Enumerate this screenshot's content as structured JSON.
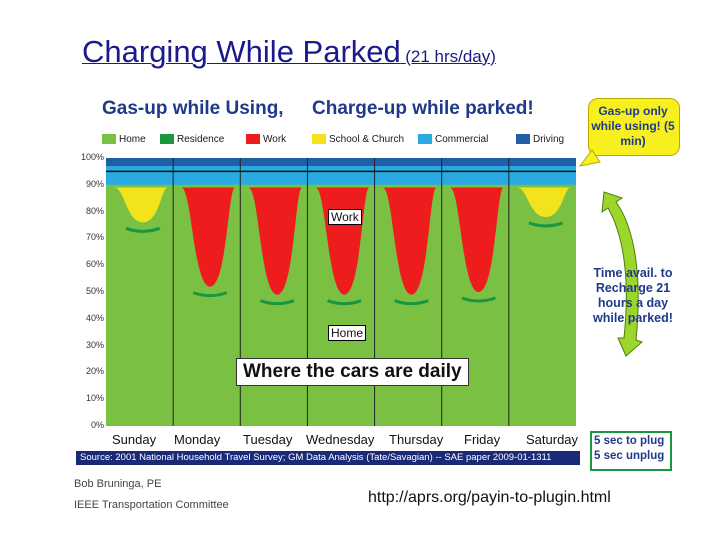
{
  "title": {
    "main": "Charging While Parked",
    "sub": "(21 hrs/day)"
  },
  "legend_header": {
    "left": "Gas-up while Using,",
    "right": "Charge-up while parked!"
  },
  "callouts": {
    "gas_up": "Gas-up only while using! (5 min)",
    "time_avail": "Time avail. to Recharge 21 hours a day while parked!",
    "plug": "5 sec to plug 5 sec unplug"
  },
  "chart_data": {
    "type": "area",
    "title": "Where the cars are daily",
    "xlabel": "",
    "ylabel": "",
    "ylim": [
      0,
      100
    ],
    "y_ticks": [
      "0%",
      "10%",
      "20%",
      "30%",
      "40%",
      "50%",
      "60%",
      "70%",
      "80%",
      "90%",
      "100%"
    ],
    "categories": [
      "Sunday",
      "Monday",
      "Tuesday",
      "Wednesday",
      "Thursday",
      "Friday",
      "Saturday"
    ],
    "legend": [
      "Home",
      "Residence",
      "Work",
      "School & Church",
      "Commercial",
      "Driving"
    ],
    "colors": {
      "Home": "#7ac143",
      "Residence": "#1a9641",
      "Work": "#ee1c1c",
      "School & Church": "#f2e31c",
      "Commercial": "#29abe2",
      "Driving": "#1f5fa8"
    },
    "annotations": [
      "Work",
      "Home"
    ],
    "daily_min_home_pct": [
      76,
      52,
      49,
      49,
      49,
      50,
      78
    ],
    "source": "Source: 2001 National Household Travel Survey; GM Data Analysis (Tate/Savagian) -- SAE paper 2009-01-1311"
  },
  "footer": {
    "author": "Bob Bruninga, PE",
    "org": "IEEE Transportation Committee",
    "url": "http://aprs.org/payin-to-plugin.html"
  }
}
